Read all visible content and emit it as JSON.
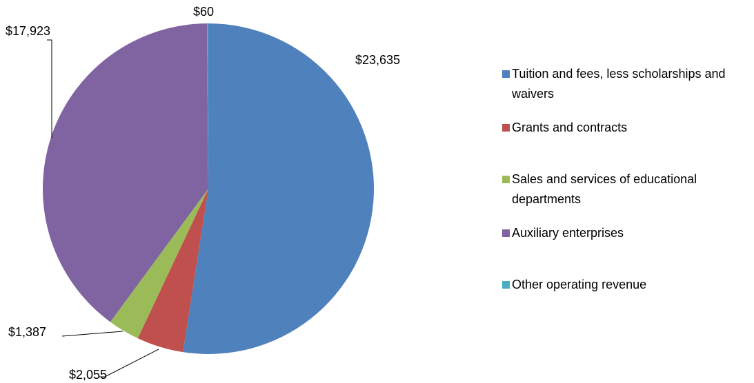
{
  "chart_data": {
    "type": "pie",
    "categories": [
      "Tuition and fees, less scholarships and waivers",
      "Grants and contracts",
      "Sales and services of educational departments",
      "Auxiliary enterprises",
      "Other operating revenue"
    ],
    "values": [
      23635,
      2055,
      1387,
      17923,
      60
    ],
    "value_labels": [
      "$23,635",
      "$2,055",
      "$1,387",
      "$17,923",
      "$60"
    ],
    "colors": [
      "#4f81bd",
      "#c0504d",
      "#9bbb59",
      "#8064a2",
      "#4bacc6"
    ],
    "legend": "right"
  }
}
